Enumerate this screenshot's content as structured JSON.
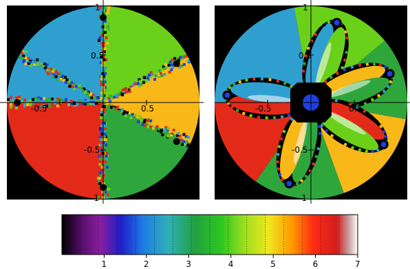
{
  "left_plot": {
    "background": "#000000",
    "axis_ticks": {
      "x_positive_half": "0.5",
      "x_negative_half": "-0.5",
      "y_positive_one": "1",
      "y_positive_half": "0.5",
      "y_negative_half": "-0.5",
      "y_negative_one": "-1"
    },
    "sectors": [
      {
        "color": "#2f9fd0",
        "from_deg": 150,
        "to_deg": 90
      },
      {
        "color": "#6ad01a",
        "from_deg": 90,
        "to_deg": 28
      },
      {
        "color": "#f8b818",
        "from_deg": 28,
        "to_deg": -25
      },
      {
        "color": "#2fa63b",
        "from_deg": -25,
        "to_deg": -90
      },
      {
        "color": "#e32a19",
        "from_deg": -90,
        "to_deg": -180
      },
      {
        "color": "#2f9fd0",
        "from_deg": 180,
        "to_deg": 150
      }
    ],
    "basins": [
      {
        "angle_deg": 90,
        "radius": 0.95
      },
      {
        "angle_deg": 28,
        "radius": 0.93
      },
      {
        "angle_deg": -28,
        "radius": 0.93
      },
      {
        "angle_deg": -90,
        "radius": 0.95
      },
      {
        "angle_deg": 180,
        "radius": 0.96
      }
    ]
  },
  "right_plot": {
    "background": "#000000",
    "axis_ticks": {
      "x_positive_half": "0.5",
      "x_negative_half": "-0.5",
      "y_positive_one": "1",
      "y_positive_half": "0.5",
      "y_negative_half": "-0.5",
      "y_negative_one": "-1"
    },
    "center_color": "#1f3fe0",
    "petals": [
      {
        "angle_deg": 72,
        "color_a": "#2f9fd0",
        "color_b": "#6ad01a"
      },
      {
        "angle_deg": 20,
        "color_a": "#f8b818",
        "color_b": "#2fa63b"
      },
      {
        "angle_deg": -30,
        "color_a": "#e32a19",
        "color_b": "#6ad01a"
      },
      {
        "angle_deg": -105,
        "color_a": "#2fa63b",
        "color_b": "#f8b818"
      },
      {
        "angle_deg": 175,
        "color_a": "#e32a19",
        "color_b": "#2f9fd0"
      }
    ],
    "background_sectors": [
      {
        "color": "#2f9fd0",
        "from_deg": 180,
        "to_deg": 100
      },
      {
        "color": "#6ad01a",
        "from_deg": 100,
        "to_deg": 40
      },
      {
        "color": "#2fa63b",
        "from_deg": 40,
        "to_deg": -10
      },
      {
        "color": "#f8b818",
        "from_deg": -10,
        "to_deg": -70
      },
      {
        "color": "#2fa63b",
        "from_deg": -70,
        "to_deg": -125
      },
      {
        "color": "#e32a19",
        "from_deg": -125,
        "to_deg": -180
      }
    ]
  },
  "colorbar": {
    "ticks": [
      "1",
      "2",
      "3",
      "4",
      "5",
      "6",
      "7"
    ],
    "stops": [
      {
        "at": 0.0,
        "color": "#000000"
      },
      {
        "at": 0.07,
        "color": "#5a0f6e"
      },
      {
        "at": 0.13,
        "color": "#8a1ea0"
      },
      {
        "at": 0.2,
        "color": "#1e1ec8"
      },
      {
        "at": 0.27,
        "color": "#1e78e6"
      },
      {
        "at": 0.36,
        "color": "#2fb0b8"
      },
      {
        "at": 0.45,
        "color": "#21a041"
      },
      {
        "at": 0.54,
        "color": "#2ec81e"
      },
      {
        "at": 0.62,
        "color": "#9fe01e"
      },
      {
        "at": 0.7,
        "color": "#f0e61e"
      },
      {
        "at": 0.78,
        "color": "#ff9600"
      },
      {
        "at": 0.85,
        "color": "#ff2a14"
      },
      {
        "at": 0.93,
        "color": "#d21e1e"
      },
      {
        "at": 0.97,
        "color": "#c8a0a0"
      },
      {
        "at": 1.0,
        "color": "#ffffff"
      }
    ]
  }
}
